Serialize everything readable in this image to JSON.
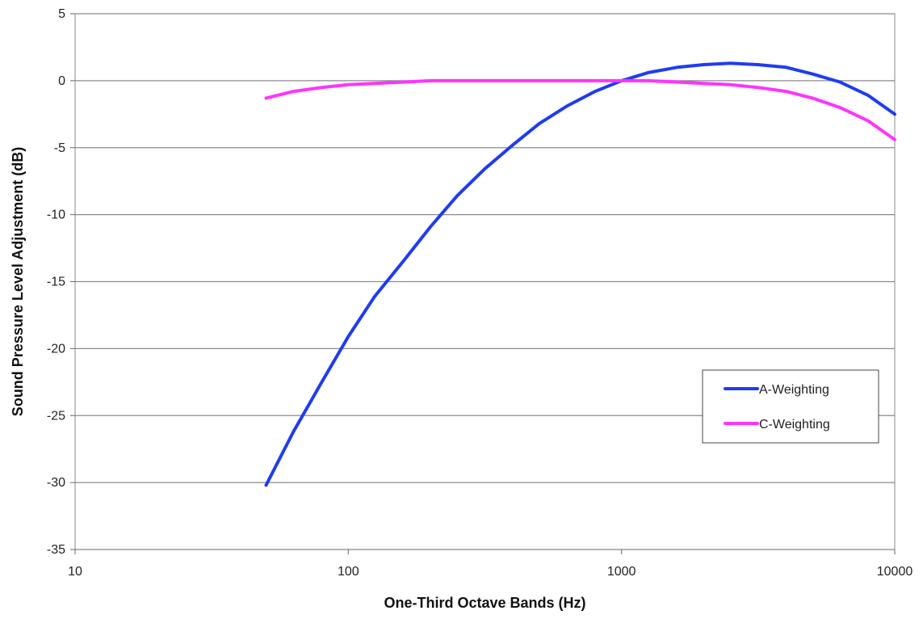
{
  "chart_data": {
    "type": "line",
    "title": "",
    "xlabel": "One-Third Octave Bands (Hz)",
    "ylabel": "Sound Pressure Level Adjustment (dB)",
    "xscale": "log",
    "xlim": [
      10,
      10000
    ],
    "ylim": [
      -35,
      5
    ],
    "xticks": [
      "10",
      "100",
      "1000",
      "10000"
    ],
    "yticks": [
      "5",
      "0",
      "-5",
      "-10",
      "-15",
      "-20",
      "-25",
      "-30",
      "-35"
    ],
    "grid": "horizontal",
    "legend_position": "right",
    "x": [
      50,
      63,
      80,
      100,
      125,
      160,
      200,
      250,
      315,
      400,
      500,
      630,
      800,
      1000,
      1250,
      1600,
      2000,
      2500,
      3150,
      4000,
      5000,
      6300,
      8000,
      10000
    ],
    "series": [
      {
        "name": "A-Weighting",
        "color": "#1f3cf2",
        "values": [
          -30.2,
          -26.2,
          -22.5,
          -19.1,
          -16.1,
          -13.4,
          -10.9,
          -8.6,
          -6.6,
          -4.8,
          -3.2,
          -1.9,
          -0.8,
          0.0,
          0.6,
          1.0,
          1.2,
          1.3,
          1.2,
          1.0,
          0.5,
          -0.1,
          -1.1,
          -2.5
        ]
      },
      {
        "name": "C-Weighting",
        "color": "#ff33ff",
        "values": [
          -1.3,
          -0.8,
          -0.5,
          -0.3,
          -0.2,
          -0.1,
          0.0,
          0.0,
          0.0,
          0.0,
          0.0,
          0.0,
          0.0,
          0.0,
          0.0,
          -0.1,
          -0.2,
          -0.3,
          -0.5,
          -0.8,
          -1.3,
          -2.0,
          -3.0,
          -4.4
        ]
      }
    ]
  }
}
